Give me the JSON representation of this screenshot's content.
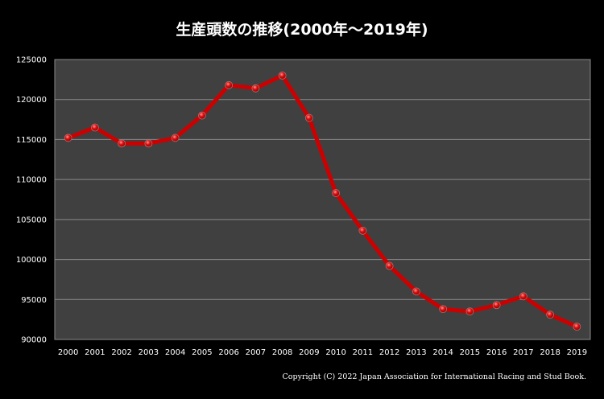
{
  "chart_data": {
    "type": "line",
    "title": "生産頭数の推移(2000年～2019年)",
    "xlabel": "",
    "ylabel": "",
    "categories": [
      "2000",
      "2001",
      "2002",
      "2003",
      "2004",
      "2005",
      "2006",
      "2007",
      "2008",
      "2009",
      "2010",
      "2011",
      "2012",
      "2013",
      "2014",
      "2015",
      "2016",
      "2017",
      "2018",
      "2019"
    ],
    "values": [
      115200,
      116500,
      114500,
      114500,
      115200,
      118000,
      121800,
      121400,
      123000,
      117700,
      108300,
      103600,
      99200,
      96000,
      93800,
      93500,
      94300,
      95400,
      93100,
      91600
    ],
    "ylim": [
      90000,
      125000
    ],
    "yticks": [
      "90000",
      "95000",
      "100000",
      "105000",
      "110000",
      "115000",
      "120000",
      "125000"
    ],
    "grid": true,
    "legend": "none",
    "colors": {
      "line": "#cc0000",
      "plot_background": "#404040",
      "background": "#000000",
      "grid": "#8a8a8a"
    }
  },
  "footer": {
    "copyright": "Copyright (C) 2022 Japan Association for International Racing and Stud Book."
  }
}
